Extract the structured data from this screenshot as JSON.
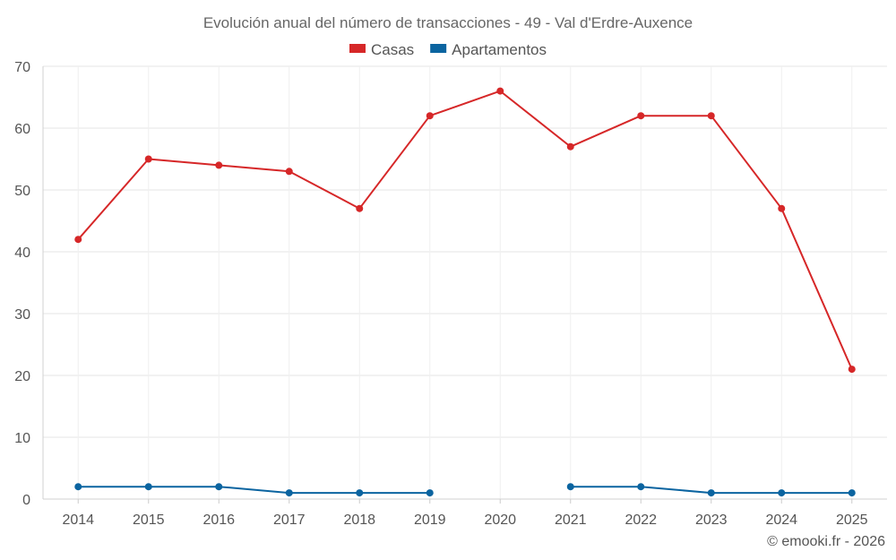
{
  "chart_data": {
    "type": "line",
    "title": "Evolución anual del número de transacciones - 49 - Val d'Erdre-Auxence",
    "categories": [
      "2014",
      "2015",
      "2016",
      "2017",
      "2018",
      "2019",
      "2020",
      "2021",
      "2022",
      "2023",
      "2024",
      "2025"
    ],
    "series": [
      {
        "name": "Casas",
        "color": "#d62728",
        "values": [
          42,
          55,
          54,
          53,
          47,
          62,
          66,
          57,
          62,
          62,
          47,
          21
        ]
      },
      {
        "name": "Apartamentos",
        "color": "#0b64a0",
        "values": [
          2,
          2,
          2,
          1,
          1,
          1,
          null,
          2,
          2,
          1,
          1,
          1
        ]
      }
    ],
    "ylim": [
      0,
      70
    ],
    "yticks": [
      0,
      10,
      20,
      30,
      40,
      50,
      60,
      70
    ],
    "grid": true,
    "legend_position": "top-center",
    "xlabel": "",
    "ylabel": ""
  },
  "footer": {
    "credit": "© emooki.fr - 2026"
  }
}
